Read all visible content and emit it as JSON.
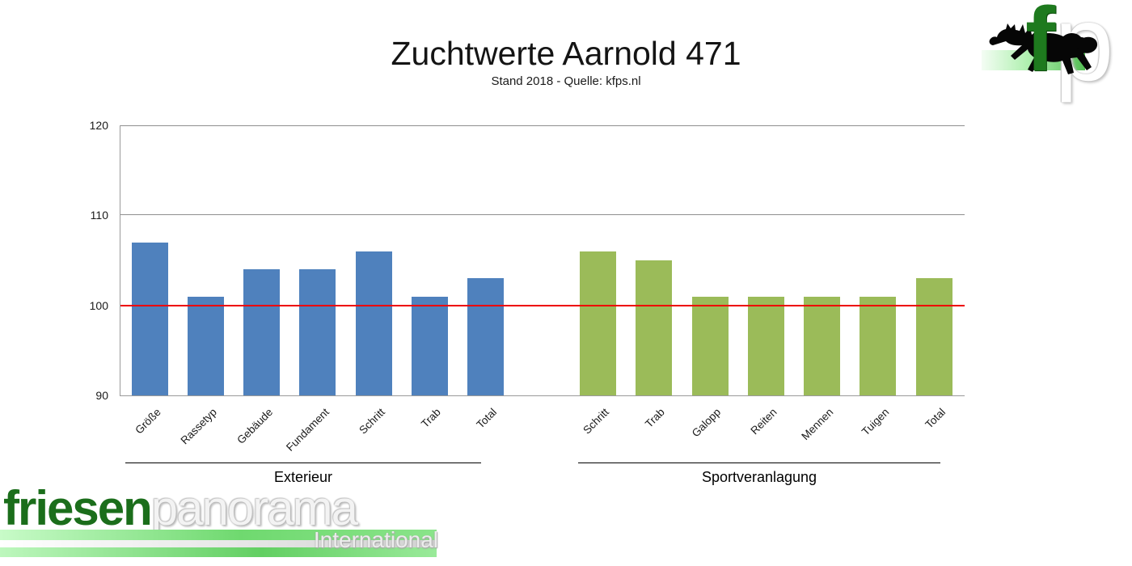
{
  "header": {
    "title": "Zuchtwerte Aarnold 471",
    "subtitle": "Stand 2018 - Quelle: kfps.nl"
  },
  "chart_data": {
    "type": "bar",
    "title": "Zuchtwerte Aarnold 471",
    "subtitle": "Stand 2018 - Quelle: kfps.nl",
    "ylim": [
      90,
      120
    ],
    "yticks": [
      90,
      100,
      110,
      120
    ],
    "grid": true,
    "gridline_color": "#8f8f8f",
    "reference_line": {
      "value": 100,
      "color": "#ee0000"
    },
    "legend": "none",
    "groups": [
      {
        "label": "Exterieur",
        "bar_color": "#4f81bd",
        "categories": [
          "Größe",
          "Rassetyp",
          "Gebäude",
          "Fundament",
          "Schritt",
          "Trab",
          "Total"
        ],
        "values": [
          107,
          101,
          104,
          104,
          106,
          101,
          103
        ]
      },
      {
        "label": "Sportveranlagung",
        "bar_color": "#9bbb59",
        "categories": [
          "Schritt",
          "Trab",
          "Galopp",
          "Reiten",
          "Mennen",
          "Tuigen",
          "Total"
        ],
        "values": [
          106,
          105,
          101,
          101,
          101,
          101,
          103
        ]
      }
    ]
  },
  "logos": {
    "top_right": {
      "f": "f",
      "p": "p"
    },
    "bottom_left": {
      "part1": "friesen",
      "part2": "panorama",
      "subtitle": "International"
    }
  },
  "colors": {
    "blue": "#4f81bd",
    "green": "#9bbb59",
    "red": "#ee0000",
    "dark_green_logo": "#1b6e1b"
  }
}
